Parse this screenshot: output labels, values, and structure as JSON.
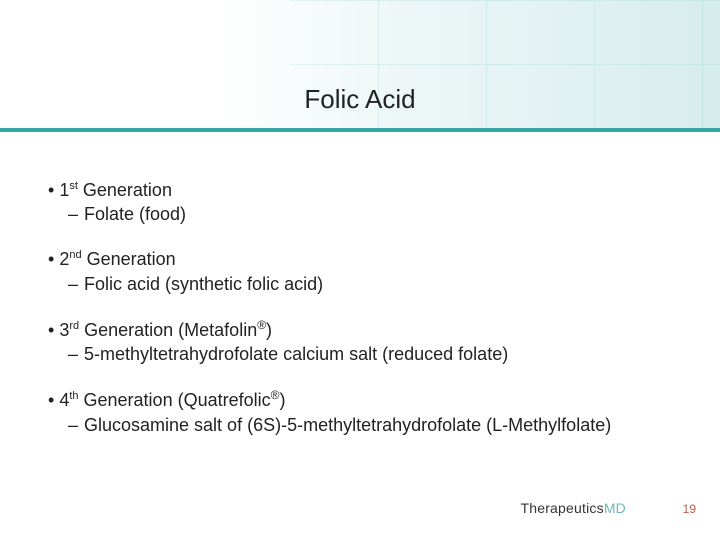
{
  "title": "Folic Acid",
  "accent_color": "#3aa7a7",
  "text_color": "#222222",
  "generations": [
    {
      "ord": "1",
      "sup": "st",
      "label_rest": " Generation",
      "sub": "Folate (food)"
    },
    {
      "ord": "2",
      "sup": "nd",
      "label_rest": " Generation",
      "sub": "Folic acid (synthetic folic acid)"
    },
    {
      "ord": "3",
      "sup": "rd",
      "label_rest": " Generation (Metafolin",
      "reg": "®",
      "label_tail": ")",
      "sub": "5-methyltetrahydrofolate calcium salt (reduced folate)"
    },
    {
      "ord": "4",
      "sup": "th",
      "label_rest": " Generation (Quatrefolic",
      "reg": "®",
      "label_tail": ")",
      "sub": "Glucosamine salt of (6S)-5-methyltetrahydrofolate (L-Methylfolate)"
    }
  ],
  "logo": {
    "part1": "Therapeutics",
    "part2": "MD"
  },
  "page_number": "19"
}
